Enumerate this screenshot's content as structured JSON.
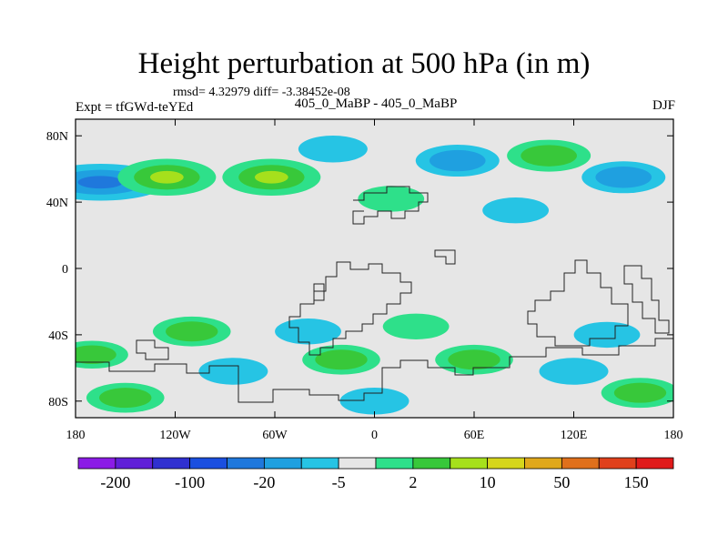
{
  "chart_data": {
    "type": "heatmap",
    "title": "Height perturbation at 500 hPa (in m)",
    "subtitle": "rmsd= 4.32979 diff= -3.38452e-08",
    "left_string": "Expt = tfGWd-teYEd",
    "center_string": "405_0_MaBP - 405_0_MaBP",
    "right_string": "DJF",
    "xlim": [
      -180,
      180
    ],
    "ylim": [
      -90,
      90
    ],
    "x_ticks": [
      {
        "value": -180,
        "label": "180"
      },
      {
        "value": -120,
        "label": "120W"
      },
      {
        "value": -60,
        "label": "60W"
      },
      {
        "value": 0,
        "label": "0"
      },
      {
        "value": 60,
        "label": "60E"
      },
      {
        "value": 120,
        "label": "120E"
      },
      {
        "value": 180,
        "label": "180"
      }
    ],
    "y_ticks": [
      {
        "value": 80,
        "label": "80N"
      },
      {
        "value": 40,
        "label": "40N"
      },
      {
        "value": 0,
        "label": "0"
      },
      {
        "value": -40,
        "label": "40S"
      },
      {
        "value": -80,
        "label": "80S"
      }
    ],
    "colorbar": {
      "colors": [
        "#8b1ce6",
        "#6020d8",
        "#3030d0",
        "#1a4fe0",
        "#1f78dc",
        "#1fa0e0",
        "#26c4e4",
        "#e6e6e6",
        "#2ee08a",
        "#38c83a",
        "#a6e01c",
        "#d6d61c",
        "#e0a81c",
        "#e0701c",
        "#e0401c",
        "#e01a1a"
      ],
      "labels": [
        {
          "boundary": 1,
          "text": "-200"
        },
        {
          "boundary": 3,
          "text": "-100"
        },
        {
          "boundary": 5,
          "text": "-20"
        },
        {
          "boundary": 7,
          "text": "-5"
        },
        {
          "boundary": 9,
          "text": "2"
        },
        {
          "boundary": 11,
          "text": "10"
        },
        {
          "boundary": 13,
          "text": "50"
        },
        {
          "boundary": 15,
          "text": "150"
        }
      ]
    },
    "anomaly_regions": [
      {
        "lon": -165,
        "lat": 52,
        "level": "low",
        "extent": "wide",
        "value": -15
      },
      {
        "lon": -125,
        "lat": 55,
        "level": "high",
        "value": 15
      },
      {
        "lon": -62,
        "lat": 55,
        "level": "high",
        "value": 15
      },
      {
        "lon": -25,
        "lat": 72,
        "level": "low",
        "value": -5
      },
      {
        "lon": 10,
        "lat": 42,
        "level": "high",
        "value": 4
      },
      {
        "lon": 50,
        "lat": 65,
        "level": "low",
        "value": -10
      },
      {
        "lon": 105,
        "lat": 68,
        "level": "high",
        "value": 10
      },
      {
        "lon": 150,
        "lat": 55,
        "level": "low",
        "value": -10
      },
      {
        "lon": 85,
        "lat": 35,
        "level": "low",
        "value": -4
      },
      {
        "lon": -110,
        "lat": -38,
        "level": "high",
        "value": 8
      },
      {
        "lon": -40,
        "lat": -38,
        "level": "low",
        "value": -4
      },
      {
        "lon": 25,
        "lat": -35,
        "level": "high",
        "value": 4
      },
      {
        "lon": 140,
        "lat": -40,
        "level": "low",
        "value": -4
      },
      {
        "lon": -170,
        "lat": -52,
        "level": "high",
        "value": 6
      },
      {
        "lon": -85,
        "lat": -62,
        "level": "low",
        "value": -5
      },
      {
        "lon": -20,
        "lat": -55,
        "level": "high",
        "value": 8
      },
      {
        "lon": 60,
        "lat": -55,
        "level": "high",
        "value": 8
      },
      {
        "lon": 120,
        "lat": -62,
        "level": "low",
        "value": -5
      },
      {
        "lon": -150,
        "lat": -78,
        "level": "high",
        "value": 8
      },
      {
        "lon": 0,
        "lat": -80,
        "level": "low",
        "value": -5
      },
      {
        "lon": 160,
        "lat": -75,
        "level": "high",
        "value": 8
      }
    ]
  }
}
